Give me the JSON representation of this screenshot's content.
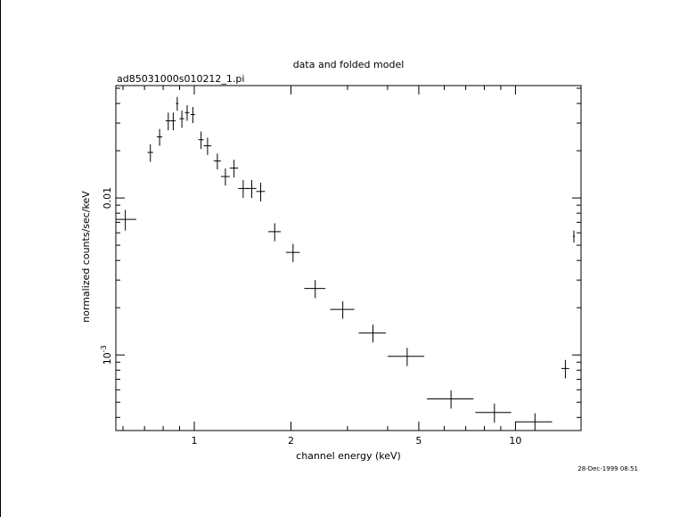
{
  "chart_data": {
    "type": "scatter",
    "title": "data and folded model",
    "subtitle": "ad85031000s010212_1.pi",
    "xlabel": "channel energy (keV)",
    "ylabel": "normalized counts/sec/keV",
    "x_scale": "log",
    "y_scale": "log",
    "xlim": [
      0.57,
      16.0
    ],
    "ylim": [
      0.00033,
      0.052
    ],
    "x_tick_labels": [
      "1",
      "2",
      "5",
      "10"
    ],
    "x_ticks": [
      1,
      2,
      5,
      10
    ],
    "y_tick_labels": [
      "0.01",
      "10^-3"
    ],
    "y_ticks": [
      0.01,
      0.001
    ],
    "timestamp": "28-Dec-1999 08:51",
    "series": [
      {
        "points": [
          {
            "x": 0.61,
            "y": 0.0073,
            "xerr": [
              0.04,
              0.05
            ],
            "yerr": [
              0.0011,
              0.0011
            ]
          },
          {
            "x": 0.73,
            "y": 0.0195,
            "xerr": [
              0.015,
              0.015
            ],
            "yerr": [
              0.0025,
              0.0025
            ]
          },
          {
            "x": 0.78,
            "y": 0.0245,
            "xerr": [
              0.015,
              0.015
            ],
            "yerr": [
              0.003,
              0.003
            ]
          },
          {
            "x": 0.83,
            "y": 0.031,
            "xerr": [
              0.015,
              0.015
            ],
            "yerr": [
              0.004,
              0.004
            ]
          },
          {
            "x": 0.86,
            "y": 0.031,
            "xerr": [
              0.015,
              0.015
            ],
            "yerr": [
              0.004,
              0.004
            ]
          },
          {
            "x": 0.885,
            "y": 0.04,
            "xerr": [
              0.008,
              0.008
            ],
            "yerr": [
              0.004,
              0.004
            ]
          },
          {
            "x": 0.915,
            "y": 0.032,
            "xerr": [
              0.015,
              0.015
            ],
            "yerr": [
              0.004,
              0.004
            ]
          },
          {
            "x": 0.95,
            "y": 0.035,
            "xerr": [
              0.015,
              0.015
            ],
            "yerr": [
              0.004,
              0.004
            ]
          },
          {
            "x": 0.99,
            "y": 0.034,
            "xerr": [
              0.015,
              0.015
            ],
            "yerr": [
              0.004,
              0.004
            ]
          },
          {
            "x": 1.05,
            "y": 0.0235,
            "xerr": [
              0.02,
              0.02
            ],
            "yerr": [
              0.003,
              0.003
            ]
          },
          {
            "x": 1.1,
            "y": 0.0215,
            "xerr": [
              0.03,
              0.03
            ],
            "yerr": [
              0.0027,
              0.0027
            ]
          },
          {
            "x": 1.18,
            "y": 0.0172,
            "xerr": [
              0.03,
              0.03
            ],
            "yerr": [
              0.002,
              0.002
            ]
          },
          {
            "x": 1.25,
            "y": 0.0137,
            "xerr": [
              0.04,
              0.04
            ],
            "yerr": [
              0.0017,
              0.0017
            ]
          },
          {
            "x": 1.33,
            "y": 0.0155,
            "xerr": [
              0.04,
              0.04
            ],
            "yerr": [
              0.002,
              0.002
            ]
          },
          {
            "x": 1.42,
            "y": 0.0115,
            "xerr": [
              0.05,
              0.05
            ],
            "yerr": [
              0.0015,
              0.0015
            ]
          },
          {
            "x": 1.51,
            "y": 0.0115,
            "xerr": [
              0.05,
              0.05
            ],
            "yerr": [
              0.0015,
              0.0015
            ]
          },
          {
            "x": 1.61,
            "y": 0.011,
            "xerr": [
              0.05,
              0.05
            ],
            "yerr": [
              0.0015,
              0.0015
            ]
          },
          {
            "x": 1.78,
            "y": 0.0061,
            "xerr": [
              0.08,
              0.08
            ],
            "yerr": [
              0.0008,
              0.0008
            ]
          },
          {
            "x": 2.03,
            "y": 0.0045,
            "xerr": [
              0.1,
              0.1
            ],
            "yerr": [
              0.0006,
              0.0006
            ]
          },
          {
            "x": 2.38,
            "y": 0.00265,
            "xerr": [
              0.18,
              0.18
            ],
            "yerr": [
              0.00035,
              0.00035
            ]
          },
          {
            "x": 2.9,
            "y": 0.00195,
            "xerr": [
              0.25,
              0.25
            ],
            "yerr": [
              0.00025,
              0.00025
            ]
          },
          {
            "x": 3.6,
            "y": 0.00138,
            "xerr": [
              0.35,
              0.35
            ],
            "yerr": [
              0.00018,
              0.00018
            ]
          },
          {
            "x": 4.6,
            "y": 0.00098,
            "xerr": [
              0.6,
              0.6
            ],
            "yerr": [
              0.00013,
              0.00013
            ]
          },
          {
            "x": 6.3,
            "y": 0.000525,
            "xerr": [
              1.0,
              1.1
            ],
            "yerr": [
              7e-05,
              7e-05
            ]
          },
          {
            "x": 8.6,
            "y": 0.00043,
            "xerr": [
              1.1,
              1.1
            ],
            "yerr": [
              6e-05,
              6e-05
            ]
          },
          {
            "x": 11.5,
            "y": 0.000375,
            "xerr": [
              1.5,
              1.5
            ],
            "yerr": [
              5e-05,
              5e-05
            ]
          },
          {
            "x": 14.3,
            "y": 0.00082,
            "xerr": [
              0.4,
              0.4
            ],
            "yerr": [
              0.00011,
              0.00011
            ]
          },
          {
            "x": 15.2,
            "y": 0.0057,
            "xerr": [
              0.1,
              0.1
            ],
            "yerr": [
              0.0005,
              0.0005
            ]
          }
        ]
      }
    ]
  }
}
